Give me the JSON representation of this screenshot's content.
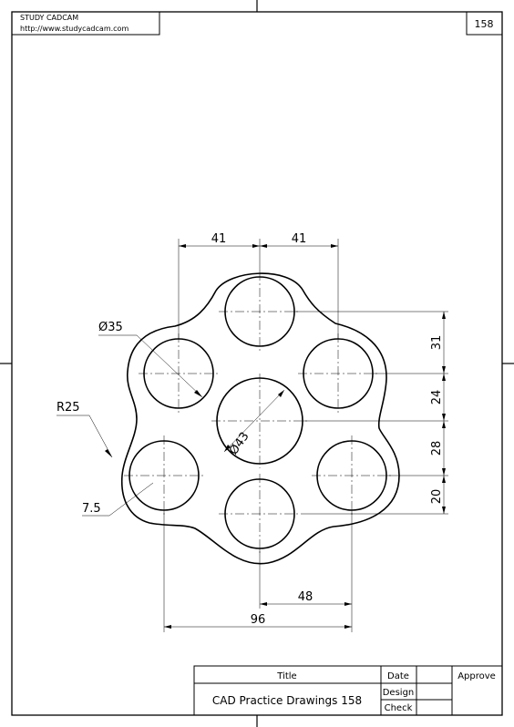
{
  "header": {
    "brand": "STUDY CADCAM",
    "url": "http://www.studycadcam.com",
    "sheet_number": "158"
  },
  "dimensions": {
    "d1": "41",
    "d2": "41",
    "dia_small": "Ø35",
    "radius": "R25",
    "offset": "7.5",
    "dia_center": "Ø43",
    "v1": "31",
    "v2": "24",
    "v3": "28",
    "v4": "20",
    "h48": "48",
    "h96": "96"
  },
  "title_block": {
    "title_label": "Title",
    "date_label": "Date",
    "approve_label": "Approve",
    "design_label": "Design",
    "check_label": "Check",
    "title_value": "CAD Practice Drawings 158"
  }
}
